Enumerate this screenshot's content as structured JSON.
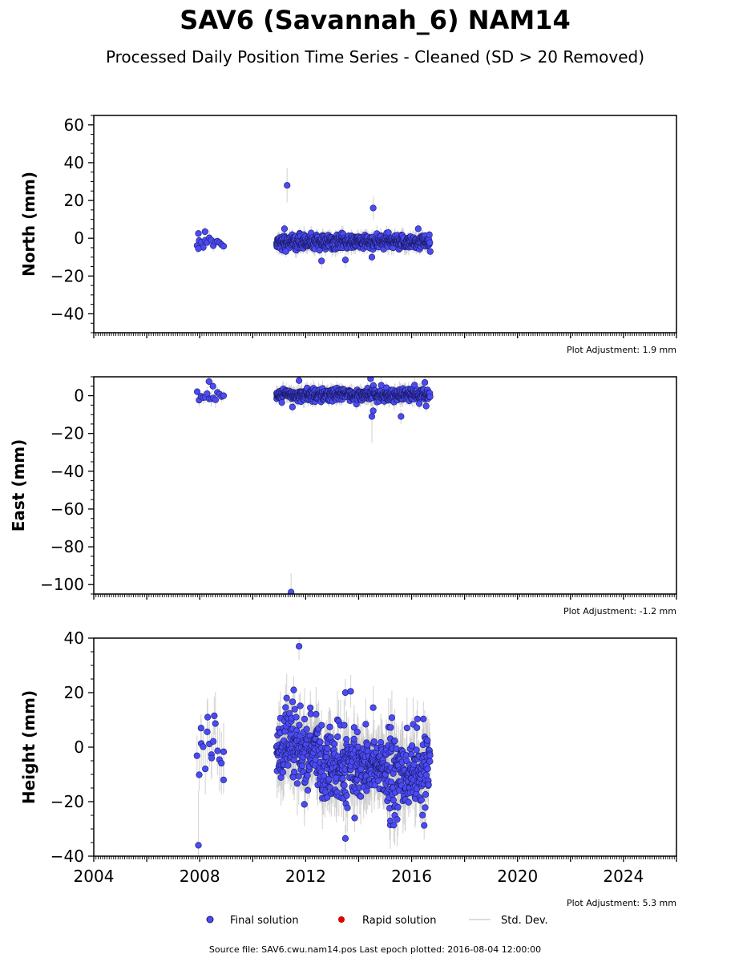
{
  "title": "SAV6 (Savannah_6) NAM14",
  "subtitle": "Processed Daily Position Time Series - Cleaned (SD > 20 Removed)",
  "legend": {
    "final": "Final solution",
    "rapid": "Rapid solution",
    "std": "Std. Dev."
  },
  "footer": "Source file: SAV6.cwu.nam14.pos  Last epoch plotted: 2016-08-04 12:00:00",
  "colors": {
    "final": "#4b4bf5",
    "rapid": "#e00000",
    "std": "#c8c8c8"
  },
  "chart_data": [
    {
      "type": "scatter",
      "panel": "north",
      "ylabel": "North (mm)",
      "adjustment": "Plot Adjustment: 1.9 mm",
      "xlim": [
        2004,
        2026
      ],
      "ylim": [
        -50,
        65
      ],
      "yticks": [
        -40,
        -20,
        0,
        20,
        40,
        60
      ],
      "yminor": 5,
      "segments": [
        {
          "start": 2007.9,
          "end": 2008.9,
          "center": -2,
          "spread": 1.8,
          "stdlen": 3
        },
        {
          "start": 2010.9,
          "end": 2016.7,
          "center": -2,
          "spread": 1.8,
          "stdlen": 3
        }
      ],
      "outliers": [
        {
          "x": 2011.3,
          "y": 28,
          "s": 9
        },
        {
          "x": 2014.55,
          "y": 16,
          "s": 6
        },
        {
          "x": 2012.6,
          "y": -12,
          "s": 4
        },
        {
          "x": 2013.5,
          "y": -11.5,
          "s": 4
        },
        {
          "x": 2014.5,
          "y": -10,
          "s": 3
        },
        {
          "x": 2011.2,
          "y": 5,
          "s": 3
        },
        {
          "x": 2008.2,
          "y": 3.5,
          "s": 3
        },
        {
          "x": 2007.95,
          "y": 2.5,
          "s": 2
        },
        {
          "x": 2007.95,
          "y": -5.5,
          "s": 2
        },
        {
          "x": 2011.25,
          "y": -7,
          "s": 3
        },
        {
          "x": 2016.25,
          "y": 5,
          "s": 3
        }
      ]
    },
    {
      "type": "scatter",
      "panel": "east",
      "ylabel": "East (mm)",
      "adjustment": "Plot Adjustment: -1.2 mm",
      "xlim": [
        2004,
        2026
      ],
      "ylim": [
        -105,
        10
      ],
      "yticks": [
        -100,
        -80,
        -60,
        -40,
        -20,
        0
      ],
      "yminor": 5,
      "segments": [
        {
          "start": 2007.9,
          "end": 2008.9,
          "center": 0,
          "spread": 1.5,
          "stdlen": 3
        },
        {
          "start": 2010.9,
          "end": 2016.7,
          "center": 0.5,
          "spread": 1.5,
          "stdlen": 3
        }
      ],
      "outliers": [
        {
          "x": 2011.45,
          "y": -104,
          "s": 10
        },
        {
          "x": 2014.5,
          "y": -11,
          "s": 14
        },
        {
          "x": 2015.6,
          "y": -11,
          "s": 4
        },
        {
          "x": 2014.45,
          "y": 9,
          "s": 5
        },
        {
          "x": 2008.35,
          "y": 7.5,
          "s": 3
        },
        {
          "x": 2008.5,
          "y": 5,
          "s": 3
        },
        {
          "x": 2011.75,
          "y": 8,
          "s": 3
        },
        {
          "x": 2016.5,
          "y": 7,
          "s": 3
        },
        {
          "x": 2011.5,
          "y": -6,
          "s": 3
        },
        {
          "x": 2016.55,
          "y": -5.5,
          "s": 3
        },
        {
          "x": 2014.55,
          "y": -8,
          "s": 4
        }
      ]
    },
    {
      "type": "scatter",
      "panel": "height",
      "ylabel": "Height (mm)",
      "adjustment": "Plot Adjustment: 5.3 mm",
      "xlim": [
        2004,
        2026
      ],
      "ylim": [
        -40,
        40
      ],
      "yticks": [
        -40,
        -20,
        0,
        20,
        40
      ],
      "yminor": 5,
      "xticks": [
        2004,
        2008,
        2012,
        2016,
        2020,
        2024
      ],
      "segments": [
        {
          "start": 2007.9,
          "end": 2008.9,
          "center": 1,
          "spread": 6,
          "stdlen": 8
        },
        {
          "start": 2010.9,
          "end": 2012.5,
          "center": -1,
          "spread": 7,
          "stdlen": 8
        },
        {
          "start": 2012.5,
          "end": 2015.0,
          "center": -7,
          "spread": 6,
          "stdlen": 8
        },
        {
          "start": 2015.0,
          "end": 2016.7,
          "center": -10,
          "spread": 7,
          "stdlen": 8
        }
      ],
      "outliers": [
        {
          "x": 2007.95,
          "y": -36,
          "s": 20
        },
        {
          "x": 2011.75,
          "y": 37,
          "s": 5
        },
        {
          "x": 2013.5,
          "y": -33.5,
          "s": 5
        },
        {
          "x": 2013.5,
          "y": 20,
          "s": 5
        },
        {
          "x": 2013.7,
          "y": 20.5,
          "s": 6
        },
        {
          "x": 2013.85,
          "y": -26,
          "s": 5
        },
        {
          "x": 2011.95,
          "y": -21,
          "s": 8
        },
        {
          "x": 2015.2,
          "y": -27,
          "s": 6
        },
        {
          "x": 2014.55,
          "y": 14.5,
          "s": 8
        },
        {
          "x": 2011.55,
          "y": 21,
          "s": 5
        },
        {
          "x": 2008.3,
          "y": 11,
          "s": 7
        },
        {
          "x": 2008.55,
          "y": 11.5,
          "s": 7
        },
        {
          "x": 2008.45,
          "y": -4,
          "s": 8
        },
        {
          "x": 2008.9,
          "y": -12,
          "s": 5
        },
        {
          "x": 2008.05,
          "y": 7,
          "s": 5
        }
      ]
    }
  ]
}
